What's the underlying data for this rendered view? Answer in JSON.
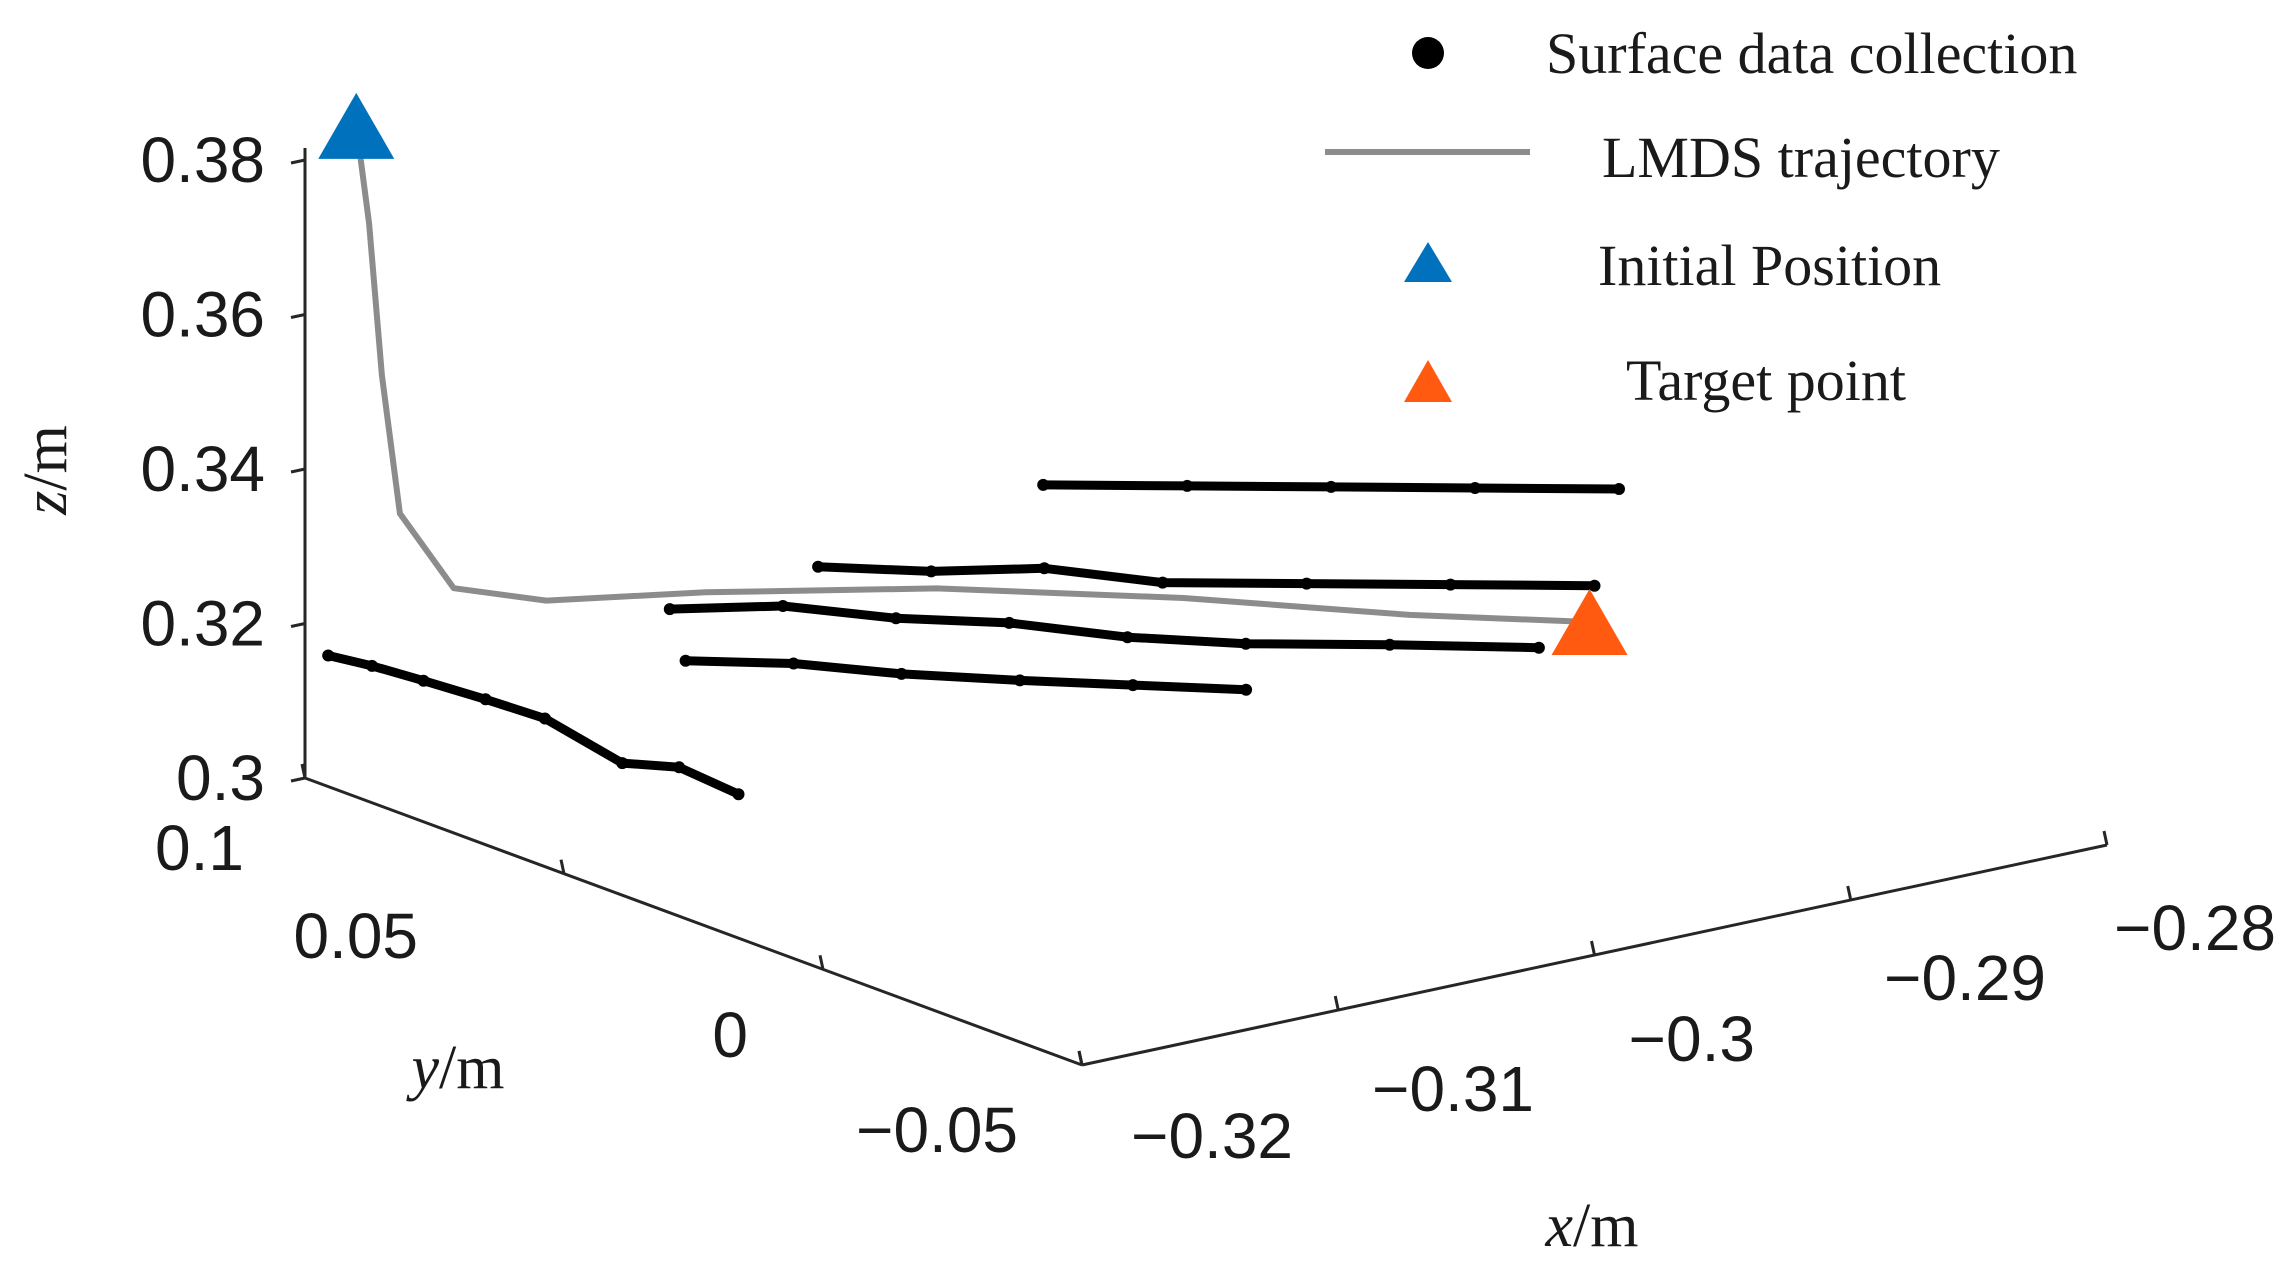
{
  "chart_data": {
    "type": "scatter3d",
    "title": "",
    "axes": {
      "x": {
        "label_var": "x",
        "label_unit": "/m",
        "ticks": [
          "−0.32",
          "−0.31",
          "−0.3",
          "−0.29",
          "−0.28"
        ],
        "tick_values": [
          -0.32,
          -0.31,
          -0.3,
          -0.29,
          -0.28
        ],
        "range": [
          -0.32,
          -0.28
        ]
      },
      "y": {
        "label_var": "y",
        "label_unit": "/m",
        "ticks": [
          "−0.05",
          "0",
          "0.05",
          "0.1"
        ],
        "tick_values": [
          -0.05,
          0,
          0.05,
          0.1
        ],
        "range": [
          -0.05,
          0.1
        ]
      },
      "z": {
        "label_var": "z",
        "label_unit": "/m",
        "ticks": [
          "0.3",
          "0.32",
          "0.34",
          "0.36",
          "0.38"
        ],
        "tick_values": [
          0.3,
          0.32,
          0.34,
          0.36,
          0.38
        ],
        "range": [
          0.3,
          0.38
        ]
      }
    },
    "legend": {
      "placement": "top-right",
      "entries": [
        {
          "label": "Surface data collection",
          "marker": "dot",
          "color": "#000000"
        },
        {
          "label": "LMDS trajectory",
          "marker": "line",
          "color": "#8c8c8c"
        },
        {
          "label": "Initial Position",
          "marker": "triangle",
          "color": "#0072bd"
        },
        {
          "label": "Target point",
          "marker": "triangle",
          "color": "#ff5a0f"
        }
      ]
    },
    "series": [
      {
        "name": "Surface data collection",
        "kind": "polylines",
        "color": "#000000",
        "note_units": "x, y, z in metres",
        "strands": [
          [
            [
              -0.3195,
              0.098,
              0.316
            ],
            [
              -0.3186,
              0.094,
              0.315
            ],
            [
              -0.3178,
              0.088,
              0.314
            ],
            [
              -0.317,
              0.08,
              0.313
            ],
            [
              -0.3163,
              0.072,
              0.312
            ],
            [
              -0.3153,
              0.062,
              0.308
            ],
            [
              -0.3147,
              0.054,
              0.309
            ],
            [
              -0.314,
              0.046,
              0.307
            ]
          ],
          [
            [
              -0.309,
              0.084,
              0.318
            ],
            [
              -0.306,
              0.077,
              0.318
            ],
            [
              -0.303,
              0.07,
              0.316
            ],
            [
              -0.3,
              0.063,
              0.315
            ],
            [
              -0.297,
              0.055,
              0.313
            ],
            [
              -0.294,
              0.047,
              0.312
            ],
            [
              -0.29,
              0.039,
              0.311
            ],
            [
              -0.286,
              0.03,
              0.31
            ]
          ],
          [
            [
              -0.302,
              0.09,
              0.317
            ],
            [
              -0.299,
              0.083,
              0.316
            ],
            [
              -0.296,
              0.076,
              0.316
            ],
            [
              -0.293,
              0.068,
              0.314
            ],
            [
              -0.289,
              0.06,
              0.313
            ],
            [
              -0.285,
              0.052,
              0.312
            ],
            [
              -0.281,
              0.044,
              0.311
            ]
          ],
          [
            [
              -0.292,
              0.096,
              0.319
            ],
            [
              -0.288,
              0.088,
              0.318
            ],
            [
              -0.284,
              0.08,
              0.317
            ],
            [
              -0.28,
              0.072,
              0.316
            ],
            [
              -0.276,
              0.064,
              0.315
            ]
          ],
          [
            [
              -0.31,
              0.076,
              0.314
            ],
            [
              -0.307,
              0.07,
              0.313
            ],
            [
              -0.304,
              0.064,
              0.311
            ],
            [
              -0.301,
              0.056,
              0.31
            ],
            [
              -0.298,
              0.049,
              0.309
            ],
            [
              -0.295,
              0.042,
              0.308
            ]
          ]
        ]
      },
      {
        "name": "LMDS trajectory",
        "kind": "line",
        "color": "#8c8c8c",
        "points": [
          [
            -0.318,
            0.1,
            0.383
          ],
          [
            -0.3175,
            0.1,
            0.37
          ],
          [
            -0.317,
            0.1,
            0.35
          ],
          [
            -0.3165,
            0.099,
            0.332
          ],
          [
            -0.315,
            0.096,
            0.322
          ],
          [
            -0.312,
            0.093,
            0.319
          ],
          [
            -0.307,
            0.087,
            0.318
          ],
          [
            -0.3,
            0.077,
            0.316
          ],
          [
            -0.293,
            0.064,
            0.313
          ],
          [
            -0.287,
            0.05,
            0.31
          ],
          [
            -0.282,
            0.04,
            0.308
          ]
        ]
      },
      {
        "name": "Initial Position",
        "kind": "marker",
        "color": "#0072bd",
        "points": [
          [
            -0.318,
            0.1,
            0.383
          ]
        ]
      },
      {
        "name": "Target point",
        "kind": "marker",
        "color": "#ff5a0f",
        "points": [
          [
            -0.282,
            0.04,
            0.308
          ]
        ]
      }
    ]
  }
}
